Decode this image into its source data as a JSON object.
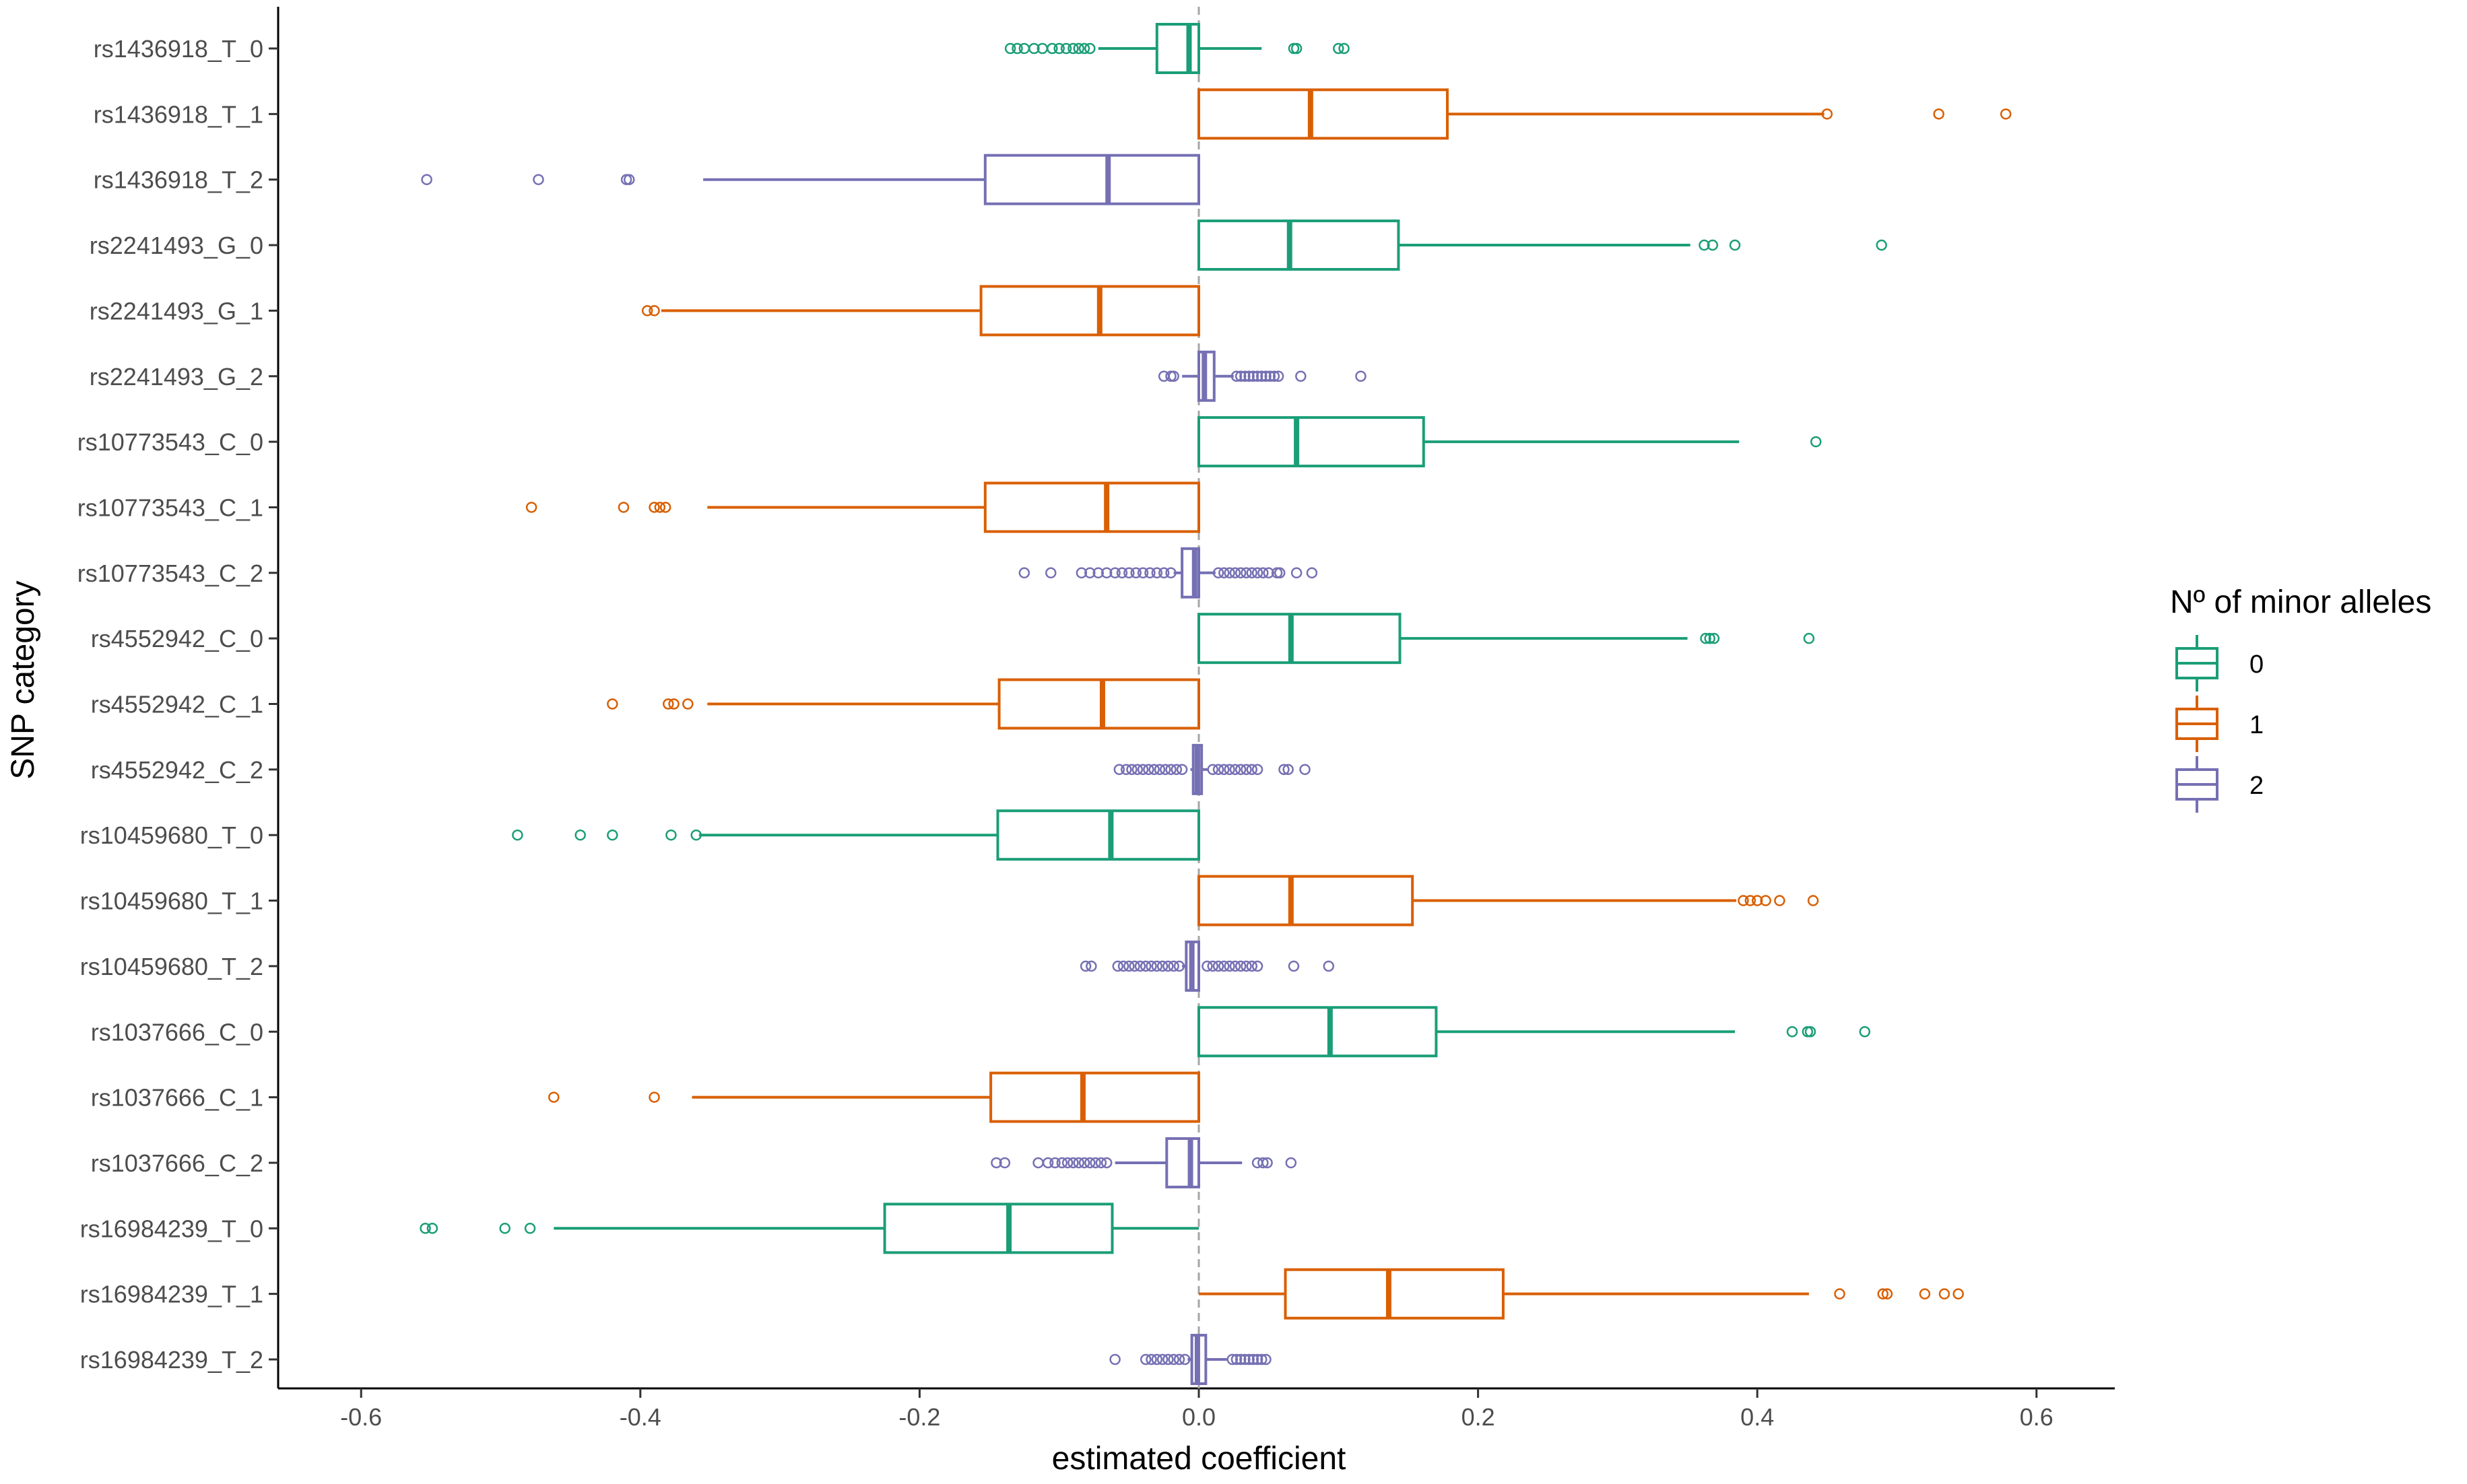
{
  "chart_data": {
    "type": "boxplot",
    "orientation": "horizontal",
    "xlabel": "estimated coefficient",
    "ylabel": "SNP category",
    "xlim": [
      -0.65,
      0.65
    ],
    "xticks": [
      -0.6,
      -0.4,
      -0.2,
      0.0,
      0.2,
      0.4,
      0.6
    ],
    "xtick_labels": [
      "-0.6",
      "-0.4",
      "-0.2",
      "0.0",
      "0.2",
      "0.4",
      "0.6"
    ],
    "reference_line": 0.0,
    "grid": false,
    "legend": {
      "title": "Nº of minor alleles",
      "position": "right",
      "entries": [
        {
          "label": "0",
          "color": "#1b9e77"
        },
        {
          "label": "1",
          "color": "#d95f02"
        },
        {
          "label": "2",
          "color": "#7570b3"
        }
      ]
    },
    "categories": [
      {
        "label": "rs1436918_T_0",
        "group": 0,
        "whisker_low": -0.072,
        "q1": -0.03,
        "median": -0.007,
        "q3": 0.0,
        "whisker_high": 0.045,
        "outliers": [
          -0.135,
          -0.13,
          -0.125,
          -0.118,
          -0.112,
          -0.105,
          -0.1,
          -0.095,
          -0.09,
          -0.086,
          -0.082,
          -0.078,
          0.068,
          0.07,
          0.1,
          0.104
        ]
      },
      {
        "label": "rs1436918_T_1",
        "group": 1,
        "whisker_low": 0.0,
        "q1": 0.0,
        "median": 0.08,
        "q3": 0.178,
        "whisker_high": 0.448,
        "outliers": [
          0.45,
          0.53,
          0.578
        ]
      },
      {
        "label": "rs1436918_T_2",
        "group": 2,
        "whisker_low": -0.355,
        "q1": -0.153,
        "median": -0.065,
        "q3": 0.0,
        "whisker_high": 0.0,
        "outliers": [
          -0.553,
          -0.473,
          -0.41,
          -0.408
        ]
      },
      {
        "label": "rs2241493_G_0",
        "group": 0,
        "whisker_low": 0.0,
        "q1": 0.0,
        "median": 0.065,
        "q3": 0.143,
        "whisker_high": 0.352,
        "outliers": [
          0.362,
          0.368,
          0.384,
          0.489
        ]
      },
      {
        "label": "rs2241493_G_1",
        "group": 1,
        "whisker_low": -0.385,
        "q1": -0.156,
        "median": -0.071,
        "q3": 0.0,
        "whisker_high": 0.0,
        "outliers": [
          -0.395,
          -0.39
        ]
      },
      {
        "label": "rs2241493_G_2",
        "group": 2,
        "whisker_low": -0.012,
        "q1": 0.0,
        "median": 0.004,
        "q3": 0.011,
        "whisker_high": 0.025,
        "outliers": [
          -0.025,
          -0.02,
          -0.018,
          0.027,
          0.03,
          0.033,
          0.036,
          0.039,
          0.042,
          0.045,
          0.048,
          0.051,
          0.054,
          0.057,
          0.073,
          0.116
        ]
      },
      {
        "label": "rs10773543_C_0",
        "group": 0,
        "whisker_low": 0.0,
        "q1": 0.0,
        "median": 0.07,
        "q3": 0.161,
        "whisker_high": 0.387,
        "outliers": [
          0.442
        ]
      },
      {
        "label": "rs10773543_C_1",
        "group": 1,
        "whisker_low": -0.352,
        "q1": -0.153,
        "median": -0.066,
        "q3": 0.0,
        "whisker_high": 0.0,
        "outliers": [
          -0.478,
          -0.412,
          -0.39,
          -0.386,
          -0.382
        ]
      },
      {
        "label": "rs10773543_C_2",
        "group": 2,
        "whisker_low": -0.018,
        "q1": -0.012,
        "median": -0.003,
        "q3": 0.0,
        "whisker_high": 0.012,
        "outliers": [
          -0.125,
          -0.106,
          -0.084,
          -0.078,
          -0.072,
          -0.066,
          -0.06,
          -0.055,
          -0.05,
          -0.045,
          -0.04,
          -0.035,
          -0.03,
          -0.025,
          -0.02,
          0.014,
          0.018,
          0.022,
          0.026,
          0.03,
          0.034,
          0.038,
          0.042,
          0.046,
          0.05,
          0.056,
          0.058,
          0.07,
          0.081
        ]
      },
      {
        "label": "rs4552942_C_0",
        "group": 0,
        "whisker_low": 0.0,
        "q1": 0.0,
        "median": 0.066,
        "q3": 0.144,
        "whisker_high": 0.35,
        "outliers": [
          0.363,
          0.366,
          0.369,
          0.437
        ]
      },
      {
        "label": "rs4552942_C_1",
        "group": 1,
        "whisker_low": -0.352,
        "q1": -0.143,
        "median": -0.069,
        "q3": 0.0,
        "whisker_high": 0.0,
        "outliers": [
          -0.42,
          -0.38,
          -0.376,
          -0.366
        ]
      },
      {
        "label": "rs4552942_C_2",
        "group": 2,
        "whisker_low": -0.006,
        "q1": -0.004,
        "median": -0.001,
        "q3": 0.002,
        "whisker_high": 0.007,
        "outliers": [
          -0.057,
          -0.052,
          -0.048,
          -0.044,
          -0.04,
          -0.036,
          -0.032,
          -0.028,
          -0.024,
          -0.02,
          -0.016,
          -0.012,
          0.01,
          0.014,
          0.018,
          0.022,
          0.026,
          0.03,
          0.034,
          0.038,
          0.042,
          0.061,
          0.064,
          0.076
        ]
      },
      {
        "label": "rs10459680_T_0",
        "group": 0,
        "whisker_low": -0.358,
        "q1": -0.144,
        "median": -0.063,
        "q3": 0.0,
        "whisker_high": 0.0,
        "outliers": [
          -0.488,
          -0.443,
          -0.42,
          -0.378,
          -0.36
        ]
      },
      {
        "label": "rs10459680_T_1",
        "group": 1,
        "whisker_low": 0.0,
        "q1": 0.0,
        "median": 0.066,
        "q3": 0.153,
        "whisker_high": 0.385,
        "outliers": [
          0.39,
          0.395,
          0.4,
          0.406,
          0.416,
          0.44
        ]
      },
      {
        "label": "rs10459680_T_2",
        "group": 2,
        "whisker_low": -0.012,
        "q1": -0.009,
        "median": -0.005,
        "q3": 0.0,
        "whisker_high": 0.001,
        "outliers": [
          -0.081,
          -0.077,
          -0.058,
          -0.054,
          -0.05,
          -0.046,
          -0.042,
          -0.038,
          -0.034,
          -0.03,
          -0.026,
          -0.022,
          -0.018,
          -0.014,
          0.006,
          0.01,
          0.014,
          0.018,
          0.022,
          0.026,
          0.03,
          0.034,
          0.038,
          0.042,
          0.068,
          0.093
        ]
      },
      {
        "label": "rs1037666_C_0",
        "group": 0,
        "whisker_low": 0.0,
        "q1": 0.0,
        "median": 0.094,
        "q3": 0.17,
        "whisker_high": 0.384,
        "outliers": [
          0.425,
          0.436,
          0.438,
          0.477
        ]
      },
      {
        "label": "rs1037666_C_1",
        "group": 1,
        "whisker_low": -0.363,
        "q1": -0.149,
        "median": -0.083,
        "q3": 0.0,
        "whisker_high": 0.0,
        "outliers": [
          -0.462,
          -0.39
        ]
      },
      {
        "label": "rs1037666_C_2",
        "group": 2,
        "whisker_low": -0.06,
        "q1": -0.023,
        "median": -0.006,
        "q3": 0.0,
        "whisker_high": 0.031,
        "outliers": [
          -0.145,
          -0.139,
          -0.115,
          -0.108,
          -0.103,
          -0.098,
          -0.094,
          -0.09,
          -0.086,
          -0.082,
          -0.078,
          -0.074,
          -0.07,
          -0.066,
          0.042,
          0.046,
          0.049,
          0.066
        ]
      },
      {
        "label": "rs16984239_T_0",
        "group": 0,
        "whisker_low": -0.462,
        "q1": -0.225,
        "median": -0.136,
        "q3": -0.062,
        "whisker_high": 0.0,
        "outliers": [
          -0.554,
          -0.549,
          -0.497,
          -0.479
        ]
      },
      {
        "label": "rs16984239_T_1",
        "group": 1,
        "whisker_low": 0.0,
        "q1": 0.062,
        "median": 0.136,
        "q3": 0.218,
        "whisker_high": 0.437,
        "outliers": [
          0.459,
          0.49,
          0.493,
          0.52,
          0.534,
          0.544
        ]
      },
      {
        "label": "rs16984239_T_2",
        "group": 2,
        "whisker_low": -0.008,
        "q1": -0.005,
        "median": -0.001,
        "q3": 0.005,
        "whisker_high": 0.02,
        "outliers": [
          -0.06,
          -0.038,
          -0.034,
          -0.03,
          -0.026,
          -0.022,
          -0.018,
          -0.014,
          -0.01,
          0.024,
          0.027,
          0.03,
          0.033,
          0.036,
          0.039,
          0.042,
          0.045,
          0.048
        ]
      }
    ]
  }
}
